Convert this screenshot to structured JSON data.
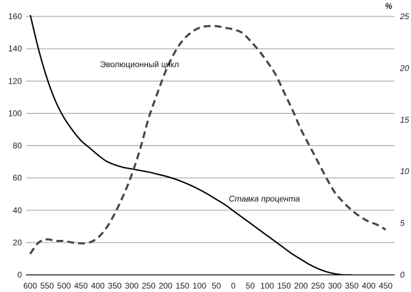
{
  "chart_data": {
    "type": "line",
    "x_ticks": [
      "600",
      "550",
      "500",
      "450",
      "400",
      "350",
      "300",
      "250",
      "200",
      "150",
      "100",
      "50",
      "0",
      "50",
      "100",
      "150",
      "200",
      "250",
      "300",
      "350",
      "400",
      "450"
    ],
    "y_left_ticks": [
      "0",
      "20",
      "40",
      "60",
      "80",
      "100",
      "120",
      "140",
      "160"
    ],
    "y_left_range": [
      0,
      160
    ],
    "y_right_ticks": [
      "0",
      "5",
      "10",
      "15",
      "20",
      "25"
    ],
    "y_right_range": [
      0,
      25
    ],
    "y_right_unit": "%",
    "grid": "horizontal",
    "series": [
      {
        "name": "Ставка процента",
        "axis": "right",
        "style": "solid",
        "color": "#000000",
        "x": [
          -600,
          -575,
          -550,
          -525,
          -500,
          -475,
          -450,
          -425,
          -400,
          -375,
          -350,
          -325,
          -300,
          -275,
          -250,
          -225,
          -200,
          -175,
          -150,
          -125,
          -100,
          -75,
          -50,
          -25,
          0,
          25,
          50,
          75,
          100,
          125,
          150,
          175,
          200,
          225,
          250,
          275,
          300,
          325,
          350
        ],
        "values": [
          25.2,
          21.8,
          19.0,
          16.8,
          15.2,
          14.0,
          13.0,
          12.3,
          11.6,
          11.0,
          10.65,
          10.4,
          10.25,
          10.1,
          9.95,
          9.75,
          9.55,
          9.3,
          9.0,
          8.65,
          8.25,
          7.8,
          7.3,
          6.8,
          6.2,
          5.6,
          5.0,
          4.4,
          3.8,
          3.2,
          2.6,
          2.0,
          1.5,
          1.0,
          0.6,
          0.3,
          0.1,
          0.0,
          0.0
        ]
      },
      {
        "name": "Эволюционный цикл",
        "axis": "left",
        "style": "dashed",
        "color": "#444444",
        "x": [
          -600,
          -575,
          -550,
          -525,
          -500,
          -475,
          -450,
          -425,
          -400,
          -375,
          -350,
          -325,
          -300,
          -275,
          -250,
          -225,
          -200,
          -175,
          -150,
          -125,
          -100,
          -75,
          -50,
          -25,
          0,
          25,
          50,
          75,
          100,
          125,
          150,
          175,
          200,
          225,
          250,
          275,
          300,
          325,
          350,
          375,
          400,
          425,
          450
        ],
        "values": [
          13,
          20,
          22,
          21,
          21,
          20,
          19.5,
          20,
          23,
          29,
          38,
          49,
          62,
          78,
          97,
          112,
          126,
          137,
          145,
          150,
          153,
          154,
          154,
          153,
          152,
          150,
          145,
          139,
          132,
          124,
          113,
          102,
          90,
          80,
          70,
          60,
          51,
          45,
          40,
          36,
          33,
          31,
          28
        ]
      }
    ],
    "annotations": {
      "cycle_label": "Эволюционный цикл",
      "rate_label": "Ставка процента"
    }
  }
}
